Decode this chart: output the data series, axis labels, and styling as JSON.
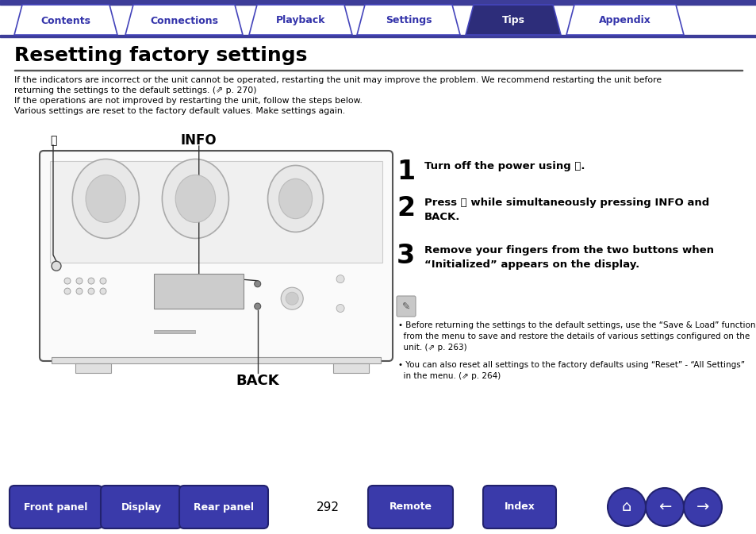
{
  "bg_color": "#ffffff",
  "nav_bar_color": "#3d3d99",
  "nav_tabs": [
    "Contents",
    "Connections",
    "Playback",
    "Settings",
    "Tips",
    "Appendix"
  ],
  "nav_tab_active": 4,
  "nav_tab_active_color": "#2d2d7a",
  "nav_tab_inactive_color": "#ffffff",
  "nav_tab_border_color": "#4444bb",
  "nav_tab_active_text_color": "#ffffff",
  "nav_tab_inactive_text_color": "#3333aa",
  "title": "Resetting factory settings",
  "title_fontsize": 18,
  "title_color": "#000000",
  "separator_color": "#444444",
  "body_text_1a": "If the indicators are incorrect or the unit cannot be operated, restarting the unit may improve the problem. We recommend restarting the unit before",
  "body_text_1b": "returning the settings to the default settings. (⇗ p. 270)",
  "body_text_2": "If the operations are not improved by restarting the unit, follow the steps below.",
  "body_text_3": "Various settings are reset to the factory default values. Make settings again.",
  "step1_num": "1",
  "step1_text": "Turn off the power using ⏻.",
  "step2_num": "2",
  "step2_text": "Press ⏻ while simultaneously pressing INFO and\nBACK.",
  "step3_num": "3",
  "step3_text": "Remove your fingers from the two buttons when\n“Initialized” appears on the display.",
  "note1": "Before returning the settings to the default settings, use the “Save & Load” function\nfrom the menu to save and restore the details of various settings configured on the\nunit. (⇗ p. 263)",
  "note2": "You can also reset all settings to the factory defaults using “Reset” - “All Settings”\nin the menu. (⇗ p. 264)",
  "bottom_buttons": [
    "Front panel",
    "Display",
    "Rear panel",
    "Remote",
    "Index"
  ],
  "page_number": "292",
  "bottom_btn_color": "#3a3aaa",
  "bottom_btn_text_color": "#ffffff",
  "info_label": "INFO",
  "back_label": "BACK",
  "power_label": "⏻"
}
